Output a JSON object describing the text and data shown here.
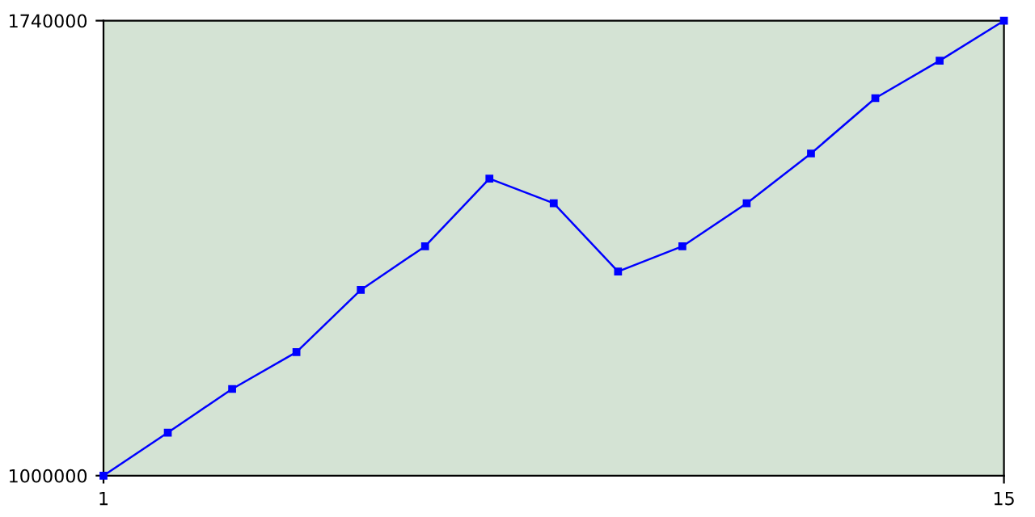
{
  "chart_data": {
    "type": "line",
    "x": [
      1,
      2,
      3,
      4,
      5,
      6,
      7,
      8,
      9,
      10,
      11,
      12,
      13,
      14,
      15
    ],
    "series": [
      {
        "color": "#0000ff",
        "values": [
          1000000,
          1070000,
          1141000,
          1201000,
          1302000,
          1373000,
          1483000,
          1443000,
          1332000,
          1373000,
          1443000,
          1524000,
          1614000,
          1675000,
          1740000
        ]
      }
    ],
    "xlim": [
      1,
      15
    ],
    "xticks": [
      1,
      15
    ],
    "ylim": [
      1000000,
      1740000
    ],
    "yticks": [
      1000000,
      1740000
    ],
    "grid": false,
    "marker": "square",
    "line_style": "solid"
  }
}
